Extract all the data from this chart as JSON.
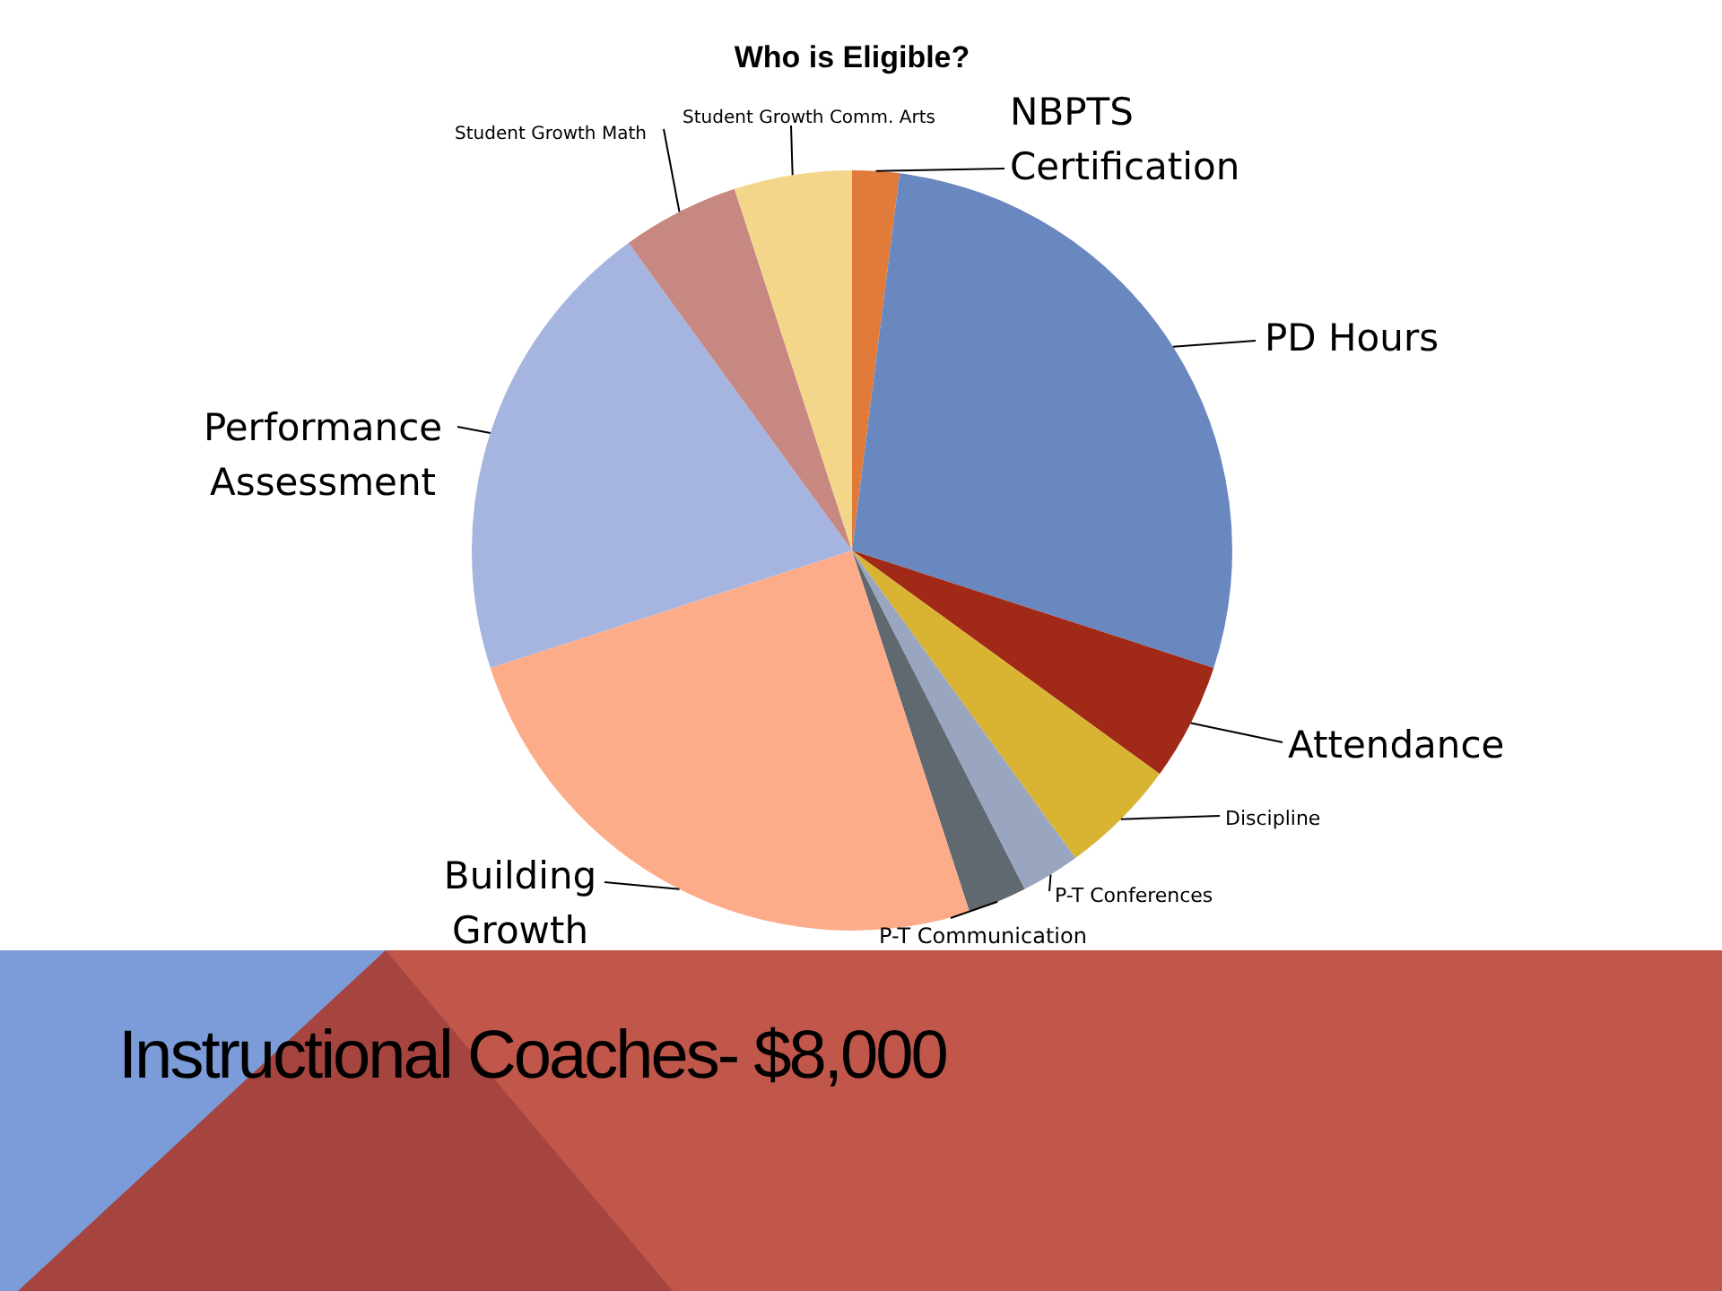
{
  "chart_data": {
    "type": "pie",
    "title": "Who is Eligible?",
    "categories": [
      "NBPTS Certification",
      "PD Hours",
      "Attendance",
      "Discipline",
      "P-T Conferences",
      "P-T Communication",
      "Building Growth",
      "Performance Assessment",
      "Student Growth Math",
      "Student Growth Comm. Arts"
    ],
    "values": [
      2,
      28,
      5,
      5,
      2.5,
      2.5,
      25,
      20,
      5,
      5
    ],
    "colors": [
      "#e07b39",
      "#6a88c0",
      "#a02a17",
      "#d9b432",
      "#9aa6c0",
      "#606870",
      "#fdac8a",
      "#a5b5e0",
      "#c78882",
      "#f4d68a"
    ],
    "legend": false,
    "annotations": [
      "Instructional Coaches- $8,000"
    ]
  }
}
